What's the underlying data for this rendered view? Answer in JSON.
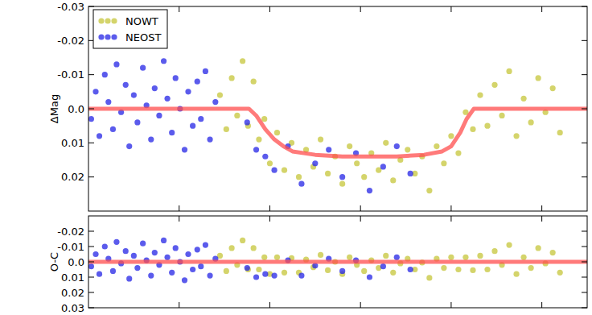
{
  "chart_data": [
    {
      "type": "scatter",
      "y_label": "ΔMag",
      "xlim": [
        0,
        5.5
      ],
      "ylim": [
        -0.03,
        0.03
      ],
      "xticks": [
        1,
        2,
        3,
        4,
        5
      ],
      "yticks": [
        -0.03,
        -0.02,
        -0.01,
        {
          "value": 0,
          "label": "0.0"
        },
        0.01,
        0.02
      ],
      "tick_labels": "y",
      "legend": "upper left",
      "series": [
        {
          "name": "NOWT",
          "color": "#c5c53a",
          "marker": "circle",
          "x": [
            1.45,
            1.52,
            1.58,
            1.64,
            1.7,
            1.76,
            1.82,
            1.88,
            1.94,
            2.0,
            2.08,
            2.16,
            2.24,
            2.32,
            2.4,
            2.48,
            2.56,
            2.64,
            2.72,
            2.8,
            2.88,
            2.96,
            3.04,
            3.12,
            3.2,
            3.28,
            3.36,
            3.44,
            3.52,
            3.6,
            3.68,
            3.76,
            3.84,
            3.92,
            4.0,
            4.08,
            4.16,
            4.24,
            4.32,
            4.4,
            4.48,
            4.56,
            4.64,
            4.72,
            4.8,
            4.88,
            4.96,
            5.04,
            5.12,
            5.2
          ],
          "values": [
            -0.004,
            0.006,
            -0.009,
            0.002,
            -0.014,
            0.005,
            -0.008,
            0.009,
            0.003,
            0.016,
            0.007,
            0.018,
            0.01,
            0.02,
            0.012,
            0.017,
            0.009,
            0.019,
            0.014,
            0.022,
            0.011,
            0.016,
            0.02,
            0.013,
            0.018,
            0.01,
            0.021,
            0.015,
            0.012,
            0.019,
            0.014,
            0.024,
            0.011,
            0.016,
            0.008,
            0.013,
            0.001,
            0.006,
            -0.004,
            0.005,
            -0.007,
            0.002,
            -0.011,
            0.008,
            -0.003,
            0.004,
            -0.009,
            0.001,
            -0.006,
            0.007
          ]
        },
        {
          "name": "NEOST",
          "color": "#2424e6",
          "marker": "circle",
          "x": [
            0.03,
            0.08,
            0.12,
            0.18,
            0.22,
            0.27,
            0.31,
            0.36,
            0.41,
            0.45,
            0.5,
            0.54,
            0.6,
            0.64,
            0.69,
            0.73,
            0.78,
            0.83,
            0.87,
            0.92,
            0.96,
            1.01,
            1.06,
            1.1,
            1.15,
            1.2,
            1.24,
            1.29,
            1.34,
            1.4,
            1.75,
            1.85,
            1.95,
            2.05,
            2.2,
            2.35,
            2.5,
            2.65,
            2.8,
            2.95,
            3.1,
            3.25,
            3.4,
            3.55
          ],
          "values": [
            0.003,
            -0.005,
            0.008,
            -0.01,
            -0.002,
            0.006,
            -0.013,
            0.001,
            -0.007,
            0.011,
            -0.004,
            0.004,
            -0.012,
            -0.001,
            0.009,
            -0.006,
            0.002,
            -0.014,
            -0.003,
            0.007,
            -0.009,
            0.0,
            0.012,
            -0.005,
            0.005,
            -0.008,
            0.003,
            -0.011,
            0.009,
            -0.002,
            0.004,
            0.012,
            0.014,
            0.018,
            0.011,
            0.022,
            0.016,
            0.012,
            0.02,
            0.013,
            0.024,
            0.017,
            0.011,
            0.019
          ]
        },
        {
          "type": "line",
          "color": "#ff4d4d",
          "line_style": "solid",
          "x": [
            0,
            1.77,
            1.85,
            1.95,
            2.05,
            2.15,
            2.25,
            2.5,
            2.8,
            3.1,
            3.4,
            3.7,
            3.9,
            4.0,
            4.1,
            4.17,
            4.25,
            5.5
          ],
          "values": [
            0,
            0,
            0.002,
            0.006,
            0.009,
            0.011,
            0.0125,
            0.0135,
            0.014,
            0.014,
            0.014,
            0.0135,
            0.0125,
            0.011,
            0.007,
            0.003,
            0,
            0
          ]
        }
      ]
    },
    {
      "type": "scatter",
      "y_label": "O-C",
      "xlim": [
        0,
        5.5
      ],
      "ylim": [
        -0.03,
        0.03
      ],
      "xticks": [
        1,
        2,
        3,
        4,
        5
      ],
      "yticks": [
        -0.02,
        -0.01,
        {
          "value": 0,
          "label": "0.0"
        },
        0.01,
        0.02,
        0.03
      ],
      "tick_labels": "y",
      "series": [
        {
          "color": "#c5c53a",
          "marker": "circle",
          "x": [
            1.45,
            1.52,
            1.58,
            1.64,
            1.7,
            1.76,
            1.82,
            1.88,
            1.94,
            2.0,
            2.08,
            2.16,
            2.24,
            2.32,
            2.4,
            2.48,
            2.56,
            2.64,
            2.72,
            2.8,
            2.88,
            2.96,
            3.04,
            3.12,
            3.2,
            3.28,
            3.36,
            3.44,
            3.52,
            3.6,
            3.68,
            3.76,
            3.84,
            3.92,
            4.0,
            4.08,
            4.16,
            4.24,
            4.32,
            4.4,
            4.48,
            4.56,
            4.64,
            4.72,
            4.8,
            4.88,
            4.96,
            5.04,
            5.12,
            5.2
          ],
          "values": [
            -0.004,
            0.006,
            -0.009,
            0.002,
            -0.014,
            0.005,
            -0.009,
            0.005,
            -0.003,
            0.008,
            -0.003,
            0.007,
            -0.0025,
            0.007,
            -0.0015,
            0.0035,
            -0.0045,
            0.0055,
            0.0,
            0.008,
            -0.003,
            0.002,
            0.006,
            -0.001,
            0.004,
            -0.004,
            0.007,
            0.001,
            -0.002,
            0.005,
            0.0005,
            0.0105,
            -0.002,
            0.004,
            -0.003,
            0.005,
            -0.003,
            0.0055,
            -0.004,
            0.005,
            -0.007,
            0.002,
            -0.011,
            0.008,
            -0.003,
            0.004,
            -0.009,
            0.001,
            -0.006,
            0.007
          ]
        },
        {
          "color": "#2424e6",
          "marker": "circle",
          "x": [
            0.03,
            0.08,
            0.12,
            0.18,
            0.22,
            0.27,
            0.31,
            0.36,
            0.41,
            0.45,
            0.5,
            0.54,
            0.6,
            0.64,
            0.69,
            0.73,
            0.78,
            0.83,
            0.87,
            0.92,
            0.96,
            1.01,
            1.06,
            1.1,
            1.15,
            1.2,
            1.24,
            1.29,
            1.34,
            1.4,
            1.75,
            1.85,
            1.95,
            2.05,
            2.2,
            2.35,
            2.5,
            2.65,
            2.8,
            2.95,
            3.1,
            3.25,
            3.4,
            3.55
          ],
          "values": [
            0.003,
            -0.005,
            0.008,
            -0.01,
            -0.002,
            0.006,
            -0.013,
            0.001,
            -0.007,
            0.011,
            -0.004,
            0.004,
            -0.012,
            -0.001,
            0.009,
            -0.006,
            0.002,
            -0.014,
            -0.003,
            0.007,
            -0.009,
            0.0,
            0.012,
            -0.005,
            0.005,
            -0.008,
            0.003,
            -0.011,
            0.009,
            -0.002,
            0.004,
            0.01,
            0.008,
            0.009,
            -0.001,
            0.009,
            0.0025,
            -0.002,
            0.006,
            -0.001,
            0.01,
            0.003,
            -0.003,
            0.005
          ]
        },
        {
          "type": "line",
          "color": "#ff4d4d",
          "line_style": "solid",
          "x": [
            0,
            5.5
          ],
          "values": [
            0,
            0
          ]
        }
      ]
    }
  ]
}
